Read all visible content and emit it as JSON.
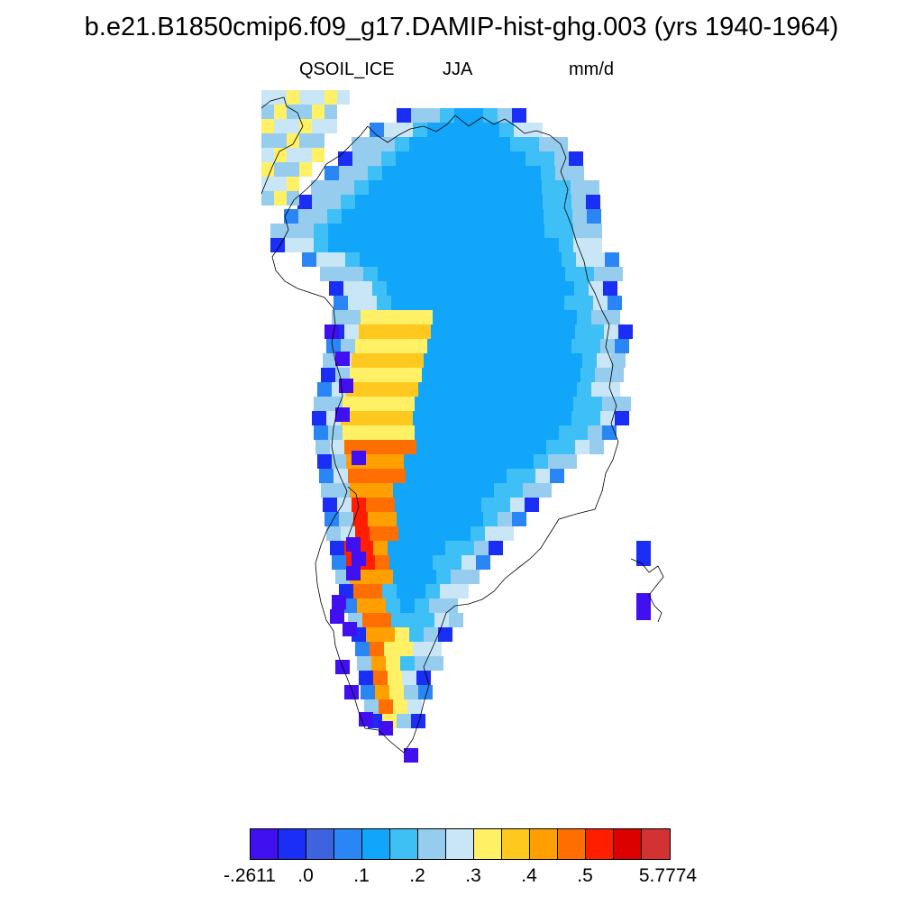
{
  "title": "b.e21.B1850cmip6.f09_g17.DAMIP-hist-ghg.003 (yrs 1940-1964)",
  "variable": "QSOIL_ICE",
  "season": "JJA",
  "units": "mm/d",
  "colorbar": {
    "colors": [
      "#4010f0",
      "#1a2ef5",
      "#3d63de",
      "#2a86f5",
      "#12a6fa",
      "#3ec0f6",
      "#96cdee",
      "#c8e6f6",
      "#fff066",
      "#ffc81e",
      "#ffa000",
      "#ff6e00",
      "#ff1e00",
      "#dc0000",
      "#d23232"
    ],
    "labels": [
      "-.2611",
      ".0",
      ".1",
      ".2",
      ".3",
      ".4",
      ".5",
      "5.7774"
    ]
  }
}
